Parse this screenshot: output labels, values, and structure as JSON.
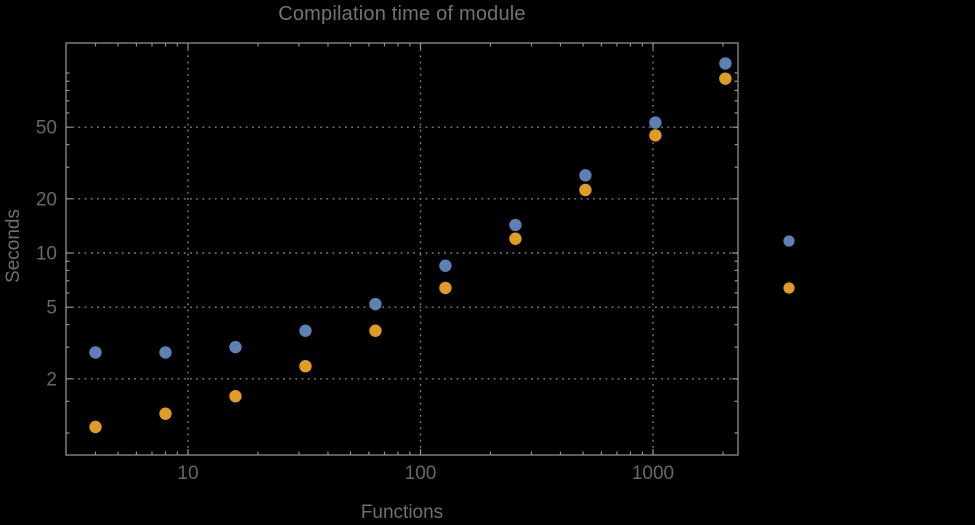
{
  "figure": {
    "title": "Compilation time of module"
  },
  "chart_data": {
    "type": "scatter",
    "title": "Compilation time of module",
    "xlabel": "Functions",
    "ylabel": "Seconds",
    "x_scale": "log",
    "y_scale": "log",
    "x_domain": [
      3,
      2320
    ],
    "y_domain": [
      0.75,
      147
    ],
    "x": [
      4,
      8,
      16,
      32,
      64,
      128,
      256,
      512,
      1024,
      2048
    ],
    "series": [
      {
        "name": "blue",
        "color": "#5E81B5",
        "values": [
          2.8,
          2.8,
          3.0,
          3.7,
          5.2,
          8.5,
          14.3,
          27,
          53,
          113
        ]
      },
      {
        "name": "orange",
        "color": "#E19C24",
        "values": [
          1.08,
          1.28,
          1.6,
          2.35,
          3.7,
          6.4,
          12,
          22.4,
          45,
          93
        ]
      }
    ],
    "axes": {
      "x_major": [
        10,
        100,
        1000
      ],
      "x_major_labels": [
        "10",
        "100",
        "1000"
      ],
      "x_minor": [
        4,
        5,
        6,
        7,
        8,
        9,
        20,
        30,
        40,
        50,
        60,
        70,
        80,
        90,
        200,
        300,
        400,
        500,
        600,
        700,
        800,
        900,
        2000
      ],
      "y_major": [
        2,
        5,
        10,
        20,
        50
      ],
      "y_major_labels": [
        "2",
        "5",
        "10",
        "20",
        "50"
      ],
      "y_minor": [
        1,
        1.5,
        3,
        4,
        6,
        7,
        8,
        9,
        30,
        40,
        60,
        70,
        80,
        90,
        100
      ]
    },
    "grid": {
      "style": "dotted",
      "on": "major"
    },
    "legend": {
      "position": "outside-right",
      "entries": [
        {
          "marker": "disc",
          "color": "#5E81B5",
          "label": ""
        },
        {
          "marker": "disc",
          "color": "#E19C24",
          "label": ""
        }
      ]
    }
  },
  "colors": {
    "background": "#000000",
    "frame": "#8f8f8f",
    "grid": "#818181",
    "tick_labels": "#686868",
    "title": "#737373",
    "axis_labels": "#6f6f6f",
    "series_blue": "#5E81B5",
    "series_orange": "#E19C24"
  }
}
